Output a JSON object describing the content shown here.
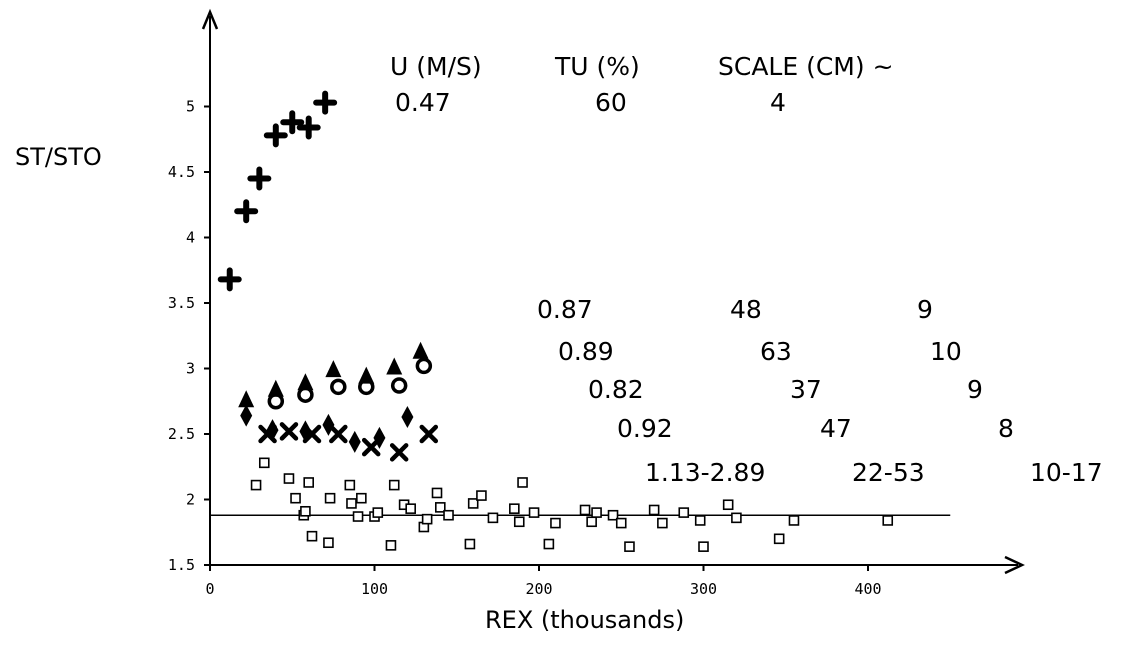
{
  "chart_data": {
    "type": "scatter",
    "title": "",
    "xlabel": "REX (thousands)",
    "ylabel": "ST/STO",
    "xlim": [
      0,
      480
    ],
    "ylim": [
      1.5,
      5.9
    ],
    "x_ticks": [
      "0",
      "100",
      "200",
      "300",
      "400"
    ],
    "y_ticks": [
      "1.5",
      "2",
      "2.5",
      "3",
      "3.5",
      "4",
      "4.5",
      "5"
    ],
    "grid": false,
    "legend": "none",
    "table_headers": [
      "U (M/S)",
      "TU (%)",
      "SCALE (CM) ~"
    ],
    "table_rows": [
      [
        "0.47",
        "60",
        "4"
      ],
      [
        "0.87",
        "48",
        "9"
      ],
      [
        "0.89",
        "63",
        "10"
      ],
      [
        "0.82",
        "37",
        "9"
      ],
      [
        "0.92",
        "47",
        "8"
      ],
      [
        "1.13-2.89",
        "22-53",
        "10-17"
      ]
    ],
    "reference_line": {
      "y": 1.88,
      "x_start": 0,
      "x_end": 450
    },
    "series": [
      {
        "marker": "plus",
        "points": [
          [
            12,
            3.68
          ],
          [
            22,
            4.2
          ],
          [
            30,
            4.45
          ],
          [
            40,
            4.78
          ],
          [
            50,
            4.88
          ],
          [
            60,
            4.84
          ],
          [
            70,
            5.03
          ]
        ]
      },
      {
        "marker": "triangle",
        "points": [
          [
            22,
            2.75
          ],
          [
            40,
            2.83
          ],
          [
            58,
            2.88
          ],
          [
            75,
            2.98
          ],
          [
            95,
            2.93
          ],
          [
            112,
            3.0
          ],
          [
            128,
            3.12
          ]
        ]
      },
      {
        "marker": "circle",
        "points": [
          [
            40,
            2.75
          ],
          [
            58,
            2.8
          ],
          [
            78,
            2.86
          ],
          [
            95,
            2.86
          ],
          [
            115,
            2.87
          ],
          [
            130,
            3.02
          ]
        ]
      },
      {
        "marker": "diamond",
        "points": [
          [
            22,
            2.64
          ],
          [
            38,
            2.53
          ],
          [
            58,
            2.52
          ],
          [
            72,
            2.57
          ],
          [
            88,
            2.44
          ],
          [
            103,
            2.47
          ],
          [
            120,
            2.63
          ]
        ]
      },
      {
        "marker": "x",
        "points": [
          [
            35,
            2.5
          ],
          [
            48,
            2.52
          ],
          [
            62,
            2.5
          ],
          [
            78,
            2.5
          ],
          [
            98,
            2.4
          ],
          [
            115,
            2.36
          ],
          [
            133,
            2.5
          ]
        ]
      },
      {
        "marker": "square",
        "points": [
          [
            28,
            2.11
          ],
          [
            33,
            2.28
          ],
          [
            48,
            2.16
          ],
          [
            52,
            2.01
          ],
          [
            57,
            1.88
          ],
          [
            58,
            1.91
          ],
          [
            60,
            2.13
          ],
          [
            62,
            1.72
          ],
          [
            72,
            1.67
          ],
          [
            73,
            2.01
          ],
          [
            85,
            2.11
          ],
          [
            86,
            1.97
          ],
          [
            90,
            1.87
          ],
          [
            92,
            2.01
          ],
          [
            100,
            1.87
          ],
          [
            102,
            1.9
          ],
          [
            110,
            1.65
          ],
          [
            112,
            2.11
          ],
          [
            118,
            1.96
          ],
          [
            122,
            1.93
          ],
          [
            130,
            1.79
          ],
          [
            132,
            1.85
          ],
          [
            138,
            2.05
          ],
          [
            140,
            1.94
          ],
          [
            145,
            1.88
          ],
          [
            158,
            1.66
          ],
          [
            160,
            1.97
          ],
          [
            165,
            2.03
          ],
          [
            172,
            1.86
          ],
          [
            185,
            1.93
          ],
          [
            188,
            1.83
          ],
          [
            190,
            2.13
          ],
          [
            197,
            1.9
          ],
          [
            206,
            1.66
          ],
          [
            210,
            1.82
          ],
          [
            228,
            1.92
          ],
          [
            232,
            1.83
          ],
          [
            235,
            1.9
          ],
          [
            245,
            1.88
          ],
          [
            250,
            1.82
          ],
          [
            255,
            1.64
          ],
          [
            270,
            1.92
          ],
          [
            275,
            1.82
          ],
          [
            288,
            1.9
          ],
          [
            298,
            1.84
          ],
          [
            300,
            1.64
          ],
          [
            315,
            1.96
          ],
          [
            320,
            1.86
          ],
          [
            346,
            1.7
          ],
          [
            355,
            1.84
          ],
          [
            412,
            1.84
          ]
        ]
      }
    ]
  }
}
